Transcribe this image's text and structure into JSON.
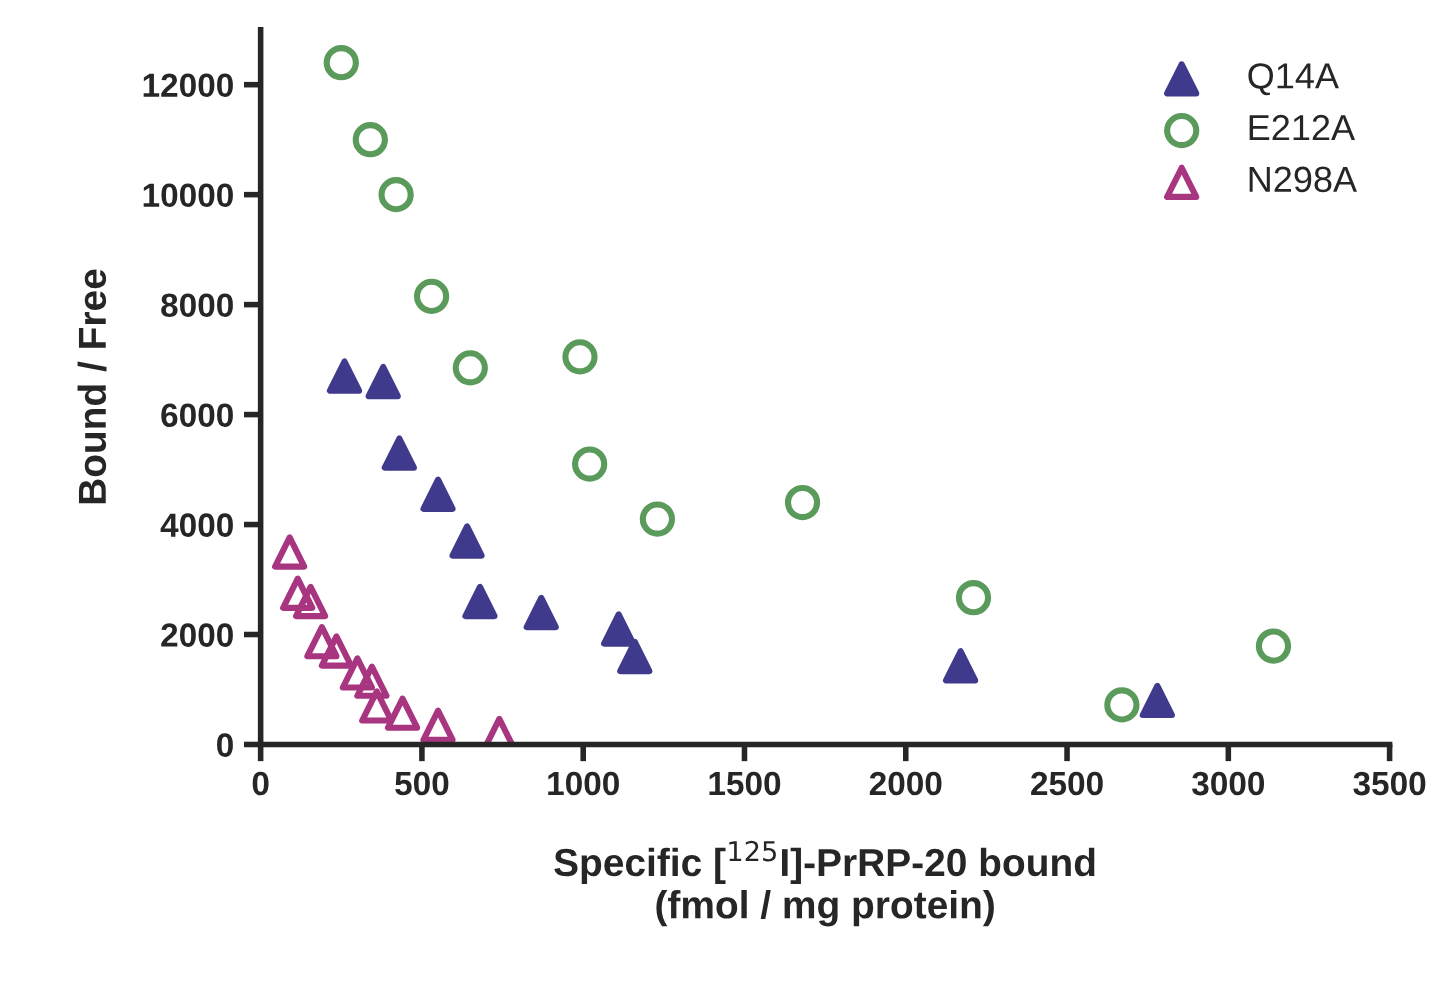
{
  "chart_data": {
    "type": "scatter",
    "xlabel": "Specific [$^{125}$I]-PrRP-20 bound\n(fmol / mg protein)",
    "ylabel": "Bound / Free",
    "xlim": [
      0,
      3500
    ],
    "xticks": [
      0,
      500,
      1000,
      1500,
      2000,
      2500,
      3000,
      3500
    ],
    "ylim": [
      0,
      13000
    ],
    "yticks": [
      0,
      2000,
      4000,
      6000,
      8000,
      10000,
      12000
    ],
    "grid": false,
    "legend": "top right",
    "series": [
      {
        "name": "Q14A",
        "color": "#3f3a8c",
        "marker": "triangle",
        "x": [
          260,
          380,
          430,
          550,
          640,
          680,
          870,
          1110,
          1160,
          2170,
          2780
        ],
        "values": [
          6700,
          6600,
          5300,
          4550,
          3700,
          2600,
          2400,
          2100,
          1600,
          1430,
          800
        ]
      },
      {
        "name": "E212A",
        "color": "#5a9a5a",
        "marker": "circle",
        "x": [
          250,
          340,
          420,
          530,
          650,
          990,
          1020,
          1230,
          1680,
          2210,
          2670,
          3140
        ],
        "values": [
          12400,
          11000,
          10000,
          8150,
          6850,
          7050,
          5100,
          4100,
          4400,
          2670,
          720,
          1790
        ]
      },
      {
        "name": "N298A",
        "color": "#a8357f",
        "marker": "triangle",
        "x": [
          90,
          115,
          155,
          190,
          235,
          300,
          345,
          360,
          440,
          550,
          740
        ],
        "values": [
          3500,
          2750,
          2600,
          1870,
          1700,
          1300,
          1150,
          700,
          570,
          350,
          200
        ]
      }
    ]
  }
}
